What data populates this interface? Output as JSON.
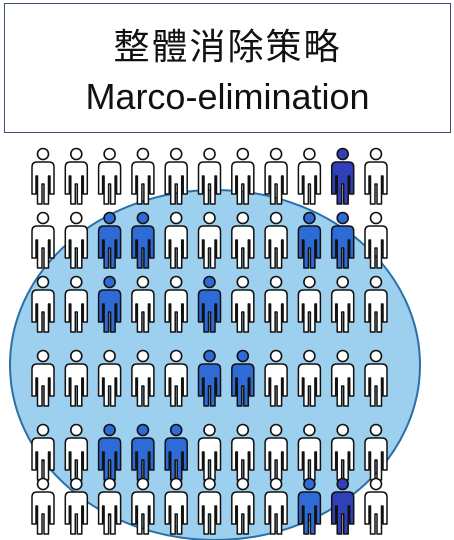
{
  "title": {
    "zh": "整體消除策略",
    "en": "Marco-elimination"
  },
  "colors": {
    "person_plain": "#ffffff",
    "person_stroke": "#111111",
    "person_highlight": "#2e6bd6",
    "person_highlight_outside": "#3040b8",
    "circle_fill": "#8cc8ec",
    "circle_stroke": "#2a6fa8"
  },
  "grid": {
    "rows": 6,
    "cols": 11,
    "highlighted": [
      [
        0,
        9
      ],
      [
        1,
        2
      ],
      [
        1,
        3
      ],
      [
        1,
        8
      ],
      [
        1,
        9
      ],
      [
        2,
        2
      ],
      [
        2,
        5
      ],
      [
        3,
        5
      ],
      [
        3,
        6
      ],
      [
        4,
        2
      ],
      [
        4,
        3
      ],
      [
        4,
        4
      ],
      [
        5,
        8
      ],
      [
        5,
        9
      ]
    ]
  }
}
